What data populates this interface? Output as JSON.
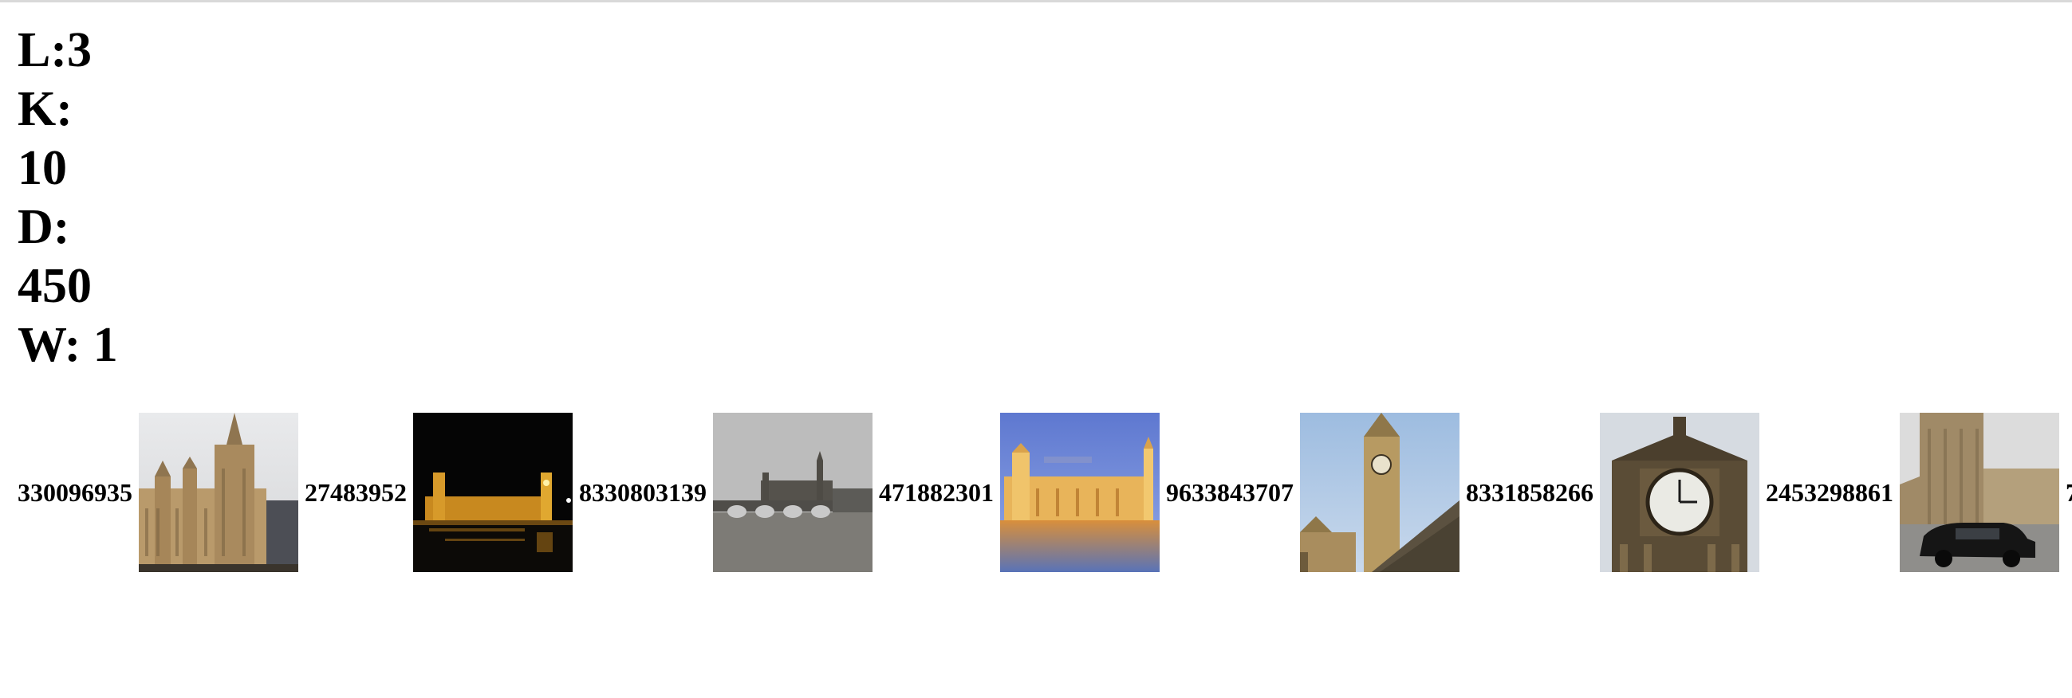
{
  "params": {
    "lines": [
      "L:3",
      "K:",
      "10",
      "D:",
      "450",
      "W: 1"
    ]
  },
  "results": [
    {
      "id": "330096935",
      "image": "houses-of-parliament-day-thumbnail"
    },
    {
      "id": "27483952",
      "image": "parliament-night-river-thumbnail"
    },
    {
      "id": "8330803139",
      "image": "westminster-bridge-overcast-thumbnail"
    },
    {
      "id": "471882301",
      "image": "parliament-dusk-reflection-thumbnail"
    },
    {
      "id": "9633843707",
      "image": "big-ben-tower-sky-thumbnail"
    },
    {
      "id": "8331858266",
      "image": "big-ben-clock-face-thumbnail"
    },
    {
      "id": "2453298861",
      "image": "parliament-black-cab-thumbnail"
    },
    {
      "id": "7",
      "image": "partial-thumbnail"
    }
  ],
  "colors": {
    "background": "#ffffff",
    "text": "#000000"
  }
}
